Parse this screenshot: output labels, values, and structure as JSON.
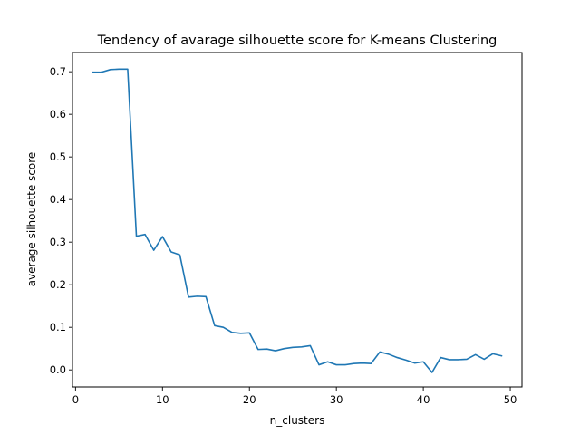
{
  "chart_data": {
    "type": "line",
    "title": "Tendency of avarage silhouette score for K-means Clustering",
    "xlabel": "n_clusters",
    "ylabel": "average silhouette score",
    "xlim": [
      -0.35,
      51.35
    ],
    "ylim": [
      -0.04,
      0.745
    ],
    "xticks": [
      0,
      10,
      20,
      30,
      40,
      50
    ],
    "yticks": [
      0.0,
      0.1,
      0.2,
      0.3,
      0.4,
      0.5,
      0.6,
      0.7
    ],
    "xtick_labels": [
      "0",
      "10",
      "20",
      "30",
      "40",
      "50"
    ],
    "ytick_labels": [
      "0.0",
      "0.1",
      "0.2",
      "0.3",
      "0.4",
      "0.5",
      "0.6",
      "0.7"
    ],
    "grid": false,
    "color": "#1f77b4",
    "series": [
      {
        "x": [
          2,
          3,
          4,
          5,
          6,
          7,
          8,
          9,
          10,
          11,
          12,
          13,
          14,
          15,
          16,
          17,
          18,
          19,
          20,
          21,
          22,
          23,
          24,
          25,
          26,
          27,
          28,
          29,
          30,
          31,
          32,
          33,
          34,
          35,
          36,
          37,
          38,
          39,
          40,
          41,
          42,
          43,
          44,
          45,
          46,
          47,
          48,
          49
        ],
        "values": [
          0.699,
          0.699,
          0.705,
          0.706,
          0.706,
          0.314,
          0.318,
          0.281,
          0.313,
          0.277,
          0.27,
          0.171,
          0.173,
          0.172,
          0.104,
          0.1,
          0.088,
          0.086,
          0.087,
          0.048,
          0.049,
          0.045,
          0.05,
          0.053,
          0.054,
          0.057,
          0.012,
          0.019,
          0.012,
          0.012,
          0.015,
          0.016,
          0.015,
          0.042,
          0.037,
          0.029,
          0.023,
          0.016,
          0.019,
          -0.006,
          0.029,
          0.024,
          0.024,
          0.025,
          0.036,
          0.025,
          0.038,
          0.033
        ]
      }
    ]
  }
}
